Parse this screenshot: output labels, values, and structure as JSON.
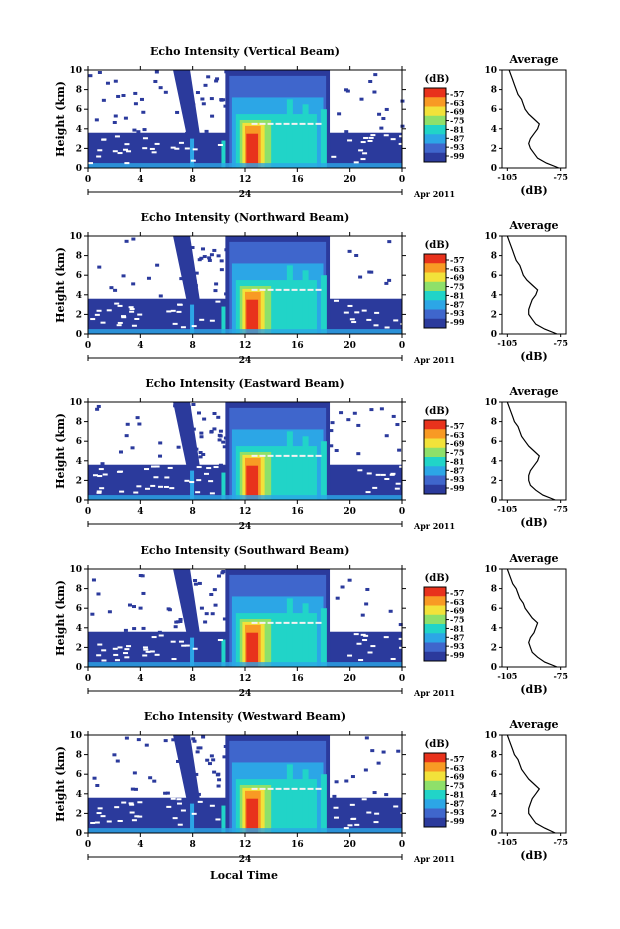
{
  "chart_data": {
    "type": "heatmap",
    "shared": {
      "ylabel": "Height (km)",
      "y_ticks": [
        0,
        2,
        4,
        6,
        8,
        10
      ],
      "ylim": [
        0,
        10
      ],
      "x_ticks": [
        "0",
        "4",
        "8",
        "12",
        "16",
        "20",
        "0"
      ],
      "xlim": [
        0,
        24
      ],
      "day_label": "24",
      "month_label": "Apr 2011",
      "xlabel": "Local Time",
      "colorbar_unit": "(dB)",
      "colorbar_ticks": [
        "-57",
        "-63",
        "-69",
        "-75",
        "-81",
        "-87",
        "-93",
        "-99"
      ],
      "colorbar_range": [
        -99,
        -57
      ],
      "colors": [
        "#2b3a9c",
        "#3f66cc",
        "#2ca6e6",
        "#21d4c8",
        "#8ee06a",
        "#f2e23a",
        "#f89a24",
        "#e8321c"
      ],
      "avg_title": "Average",
      "avg_xlabel": "(dB)",
      "avg_x_ticks": [
        "-105",
        "-75"
      ],
      "avg_xlim": [
        -108,
        -72
      ]
    },
    "panels": [
      {
        "title": "Echo Intensity (Vertical Beam)",
        "average_profile": {
          "height_km": [
            0,
            0.5,
            1,
            1.5,
            2,
            2.5,
            3,
            3.5,
            4,
            4.5,
            5,
            5.5,
            6,
            6.5,
            7,
            7.5,
            8,
            8.5,
            9,
            9.5,
            10
          ],
          "db": [
            -76,
            -83,
            -88,
            -90,
            -92,
            -93,
            -92,
            -90,
            -88,
            -87,
            -90,
            -93,
            -95,
            -96,
            -97,
            -99,
            -100,
            -101,
            -102,
            -103,
            -104
          ]
        }
      },
      {
        "title": "Echo Intensity (Northward Beam)",
        "average_profile": {
          "height_km": [
            0,
            0.5,
            1,
            1.5,
            2,
            2.5,
            3,
            3.5,
            4,
            4.5,
            5,
            5.5,
            6,
            6.5,
            7,
            7.5,
            8,
            8.5,
            9,
            9.5,
            10
          ],
          "db": [
            -77,
            -84,
            -89,
            -91,
            -93,
            -93,
            -92,
            -91,
            -89,
            -88,
            -91,
            -94,
            -96,
            -97,
            -98,
            -100,
            -101,
            -102,
            -103,
            -104,
            -105
          ]
        }
      },
      {
        "title": "Echo Intensity (Eastward Beam)",
        "average_profile": {
          "height_km": [
            0,
            0.5,
            1,
            1.5,
            2,
            2.5,
            3,
            3.5,
            4,
            4.5,
            5,
            5.5,
            6,
            6.5,
            7,
            7.5,
            8,
            8.5,
            9,
            9.5,
            10
          ],
          "db": [
            -78,
            -85,
            -89,
            -92,
            -93,
            -93,
            -92,
            -90,
            -88,
            -87,
            -90,
            -93,
            -95,
            -97,
            -98,
            -99,
            -101,
            -102,
            -103,
            -104,
            -105
          ]
        }
      },
      {
        "title": "Echo Intensity (Southward Beam)",
        "average_profile": {
          "height_km": [
            0,
            0.5,
            1,
            1.5,
            2,
            2.5,
            3,
            3.5,
            4,
            4.5,
            5,
            5.5,
            6,
            6.5,
            7,
            7.5,
            8,
            8.5,
            9,
            9.5,
            10
          ],
          "db": [
            -77,
            -84,
            -88,
            -91,
            -92,
            -93,
            -92,
            -90,
            -89,
            -88,
            -91,
            -93,
            -95,
            -96,
            -98,
            -99,
            -100,
            -102,
            -103,
            -104,
            -105
          ]
        }
      },
      {
        "title": "Echo Intensity (Westward Beam)",
        "average_profile": {
          "height_km": [
            0,
            0.5,
            1,
            1.5,
            2,
            2.5,
            3,
            3.5,
            4,
            4.5,
            5,
            5.5,
            6,
            6.5,
            7,
            7.5,
            8,
            8.5,
            9,
            9.5,
            10
          ],
          "db": [
            -78,
            -84,
            -89,
            -91,
            -93,
            -93,
            -92,
            -91,
            -89,
            -87,
            -90,
            -93,
            -95,
            -97,
            -98,
            -99,
            -101,
            -102,
            -103,
            -104,
            -105
          ]
        }
      }
    ]
  }
}
